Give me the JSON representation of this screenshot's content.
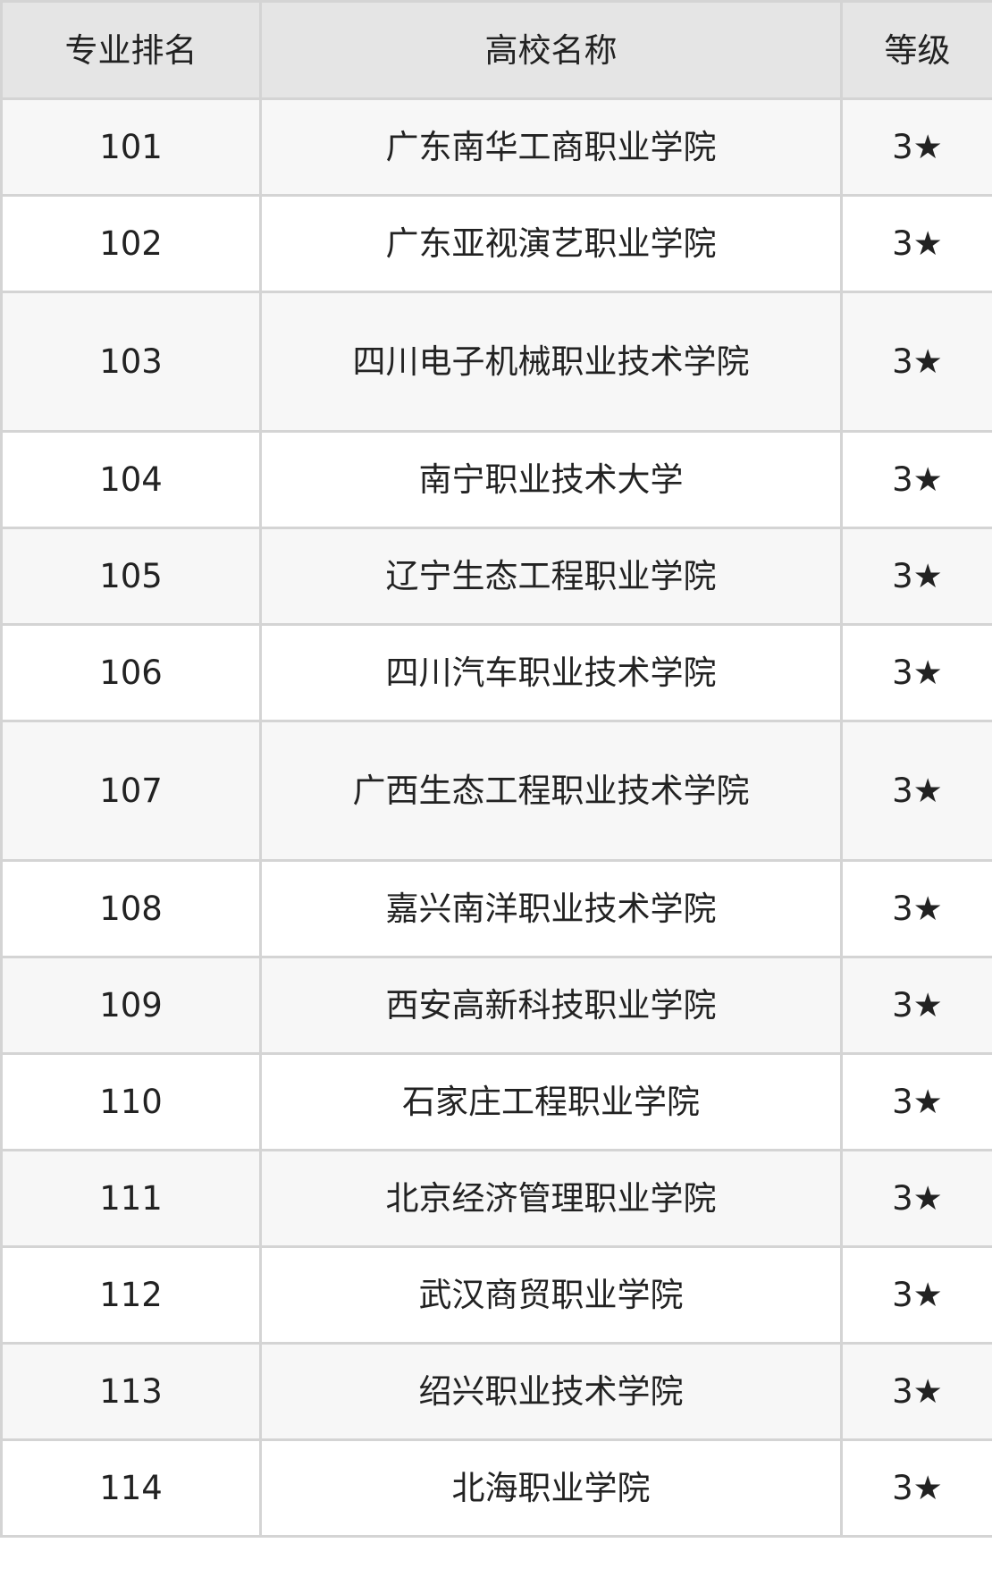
{
  "headers": [
    "专业排名",
    "高校名称",
    "等级"
  ],
  "rows": [
    {
      "rank": "101",
      "name": "广东南华工商职业学院",
      "grade": "3★"
    },
    {
      "rank": "102",
      "name": "广东亚视演艺职业学院",
      "grade": "3★"
    },
    {
      "rank": "103",
      "name": "四川电子机械职业技术学院",
      "grade": "3★"
    },
    {
      "rank": "104",
      "name": "南宁职业技术大学",
      "grade": "3★"
    },
    {
      "rank": "105",
      "name": "辽宁生态工程职业学院",
      "grade": "3★"
    },
    {
      "rank": "106",
      "name": "四川汽车职业技术学院",
      "grade": "3★"
    },
    {
      "rank": "107",
      "name": "广西生态工程职业技术学院",
      "grade": "3★"
    },
    {
      "rank": "108",
      "name": "嘉兴南洋职业技术学院",
      "grade": "3★"
    },
    {
      "rank": "109",
      "name": "西安高新科技职业学院",
      "grade": "3★"
    },
    {
      "rank": "110",
      "name": "石家庄工程职业学院",
      "grade": "3★"
    },
    {
      "rank": "111",
      "name": "北京经济管理职业学院",
      "grade": "3★"
    },
    {
      "rank": "112",
      "name": "武汉商贸职业学院",
      "grade": "3★"
    },
    {
      "rank": "113",
      "name": "绍兴职业技术学院",
      "grade": "3★"
    },
    {
      "rank": "114",
      "name": "北海职业学院",
      "grade": "3★"
    }
  ]
}
